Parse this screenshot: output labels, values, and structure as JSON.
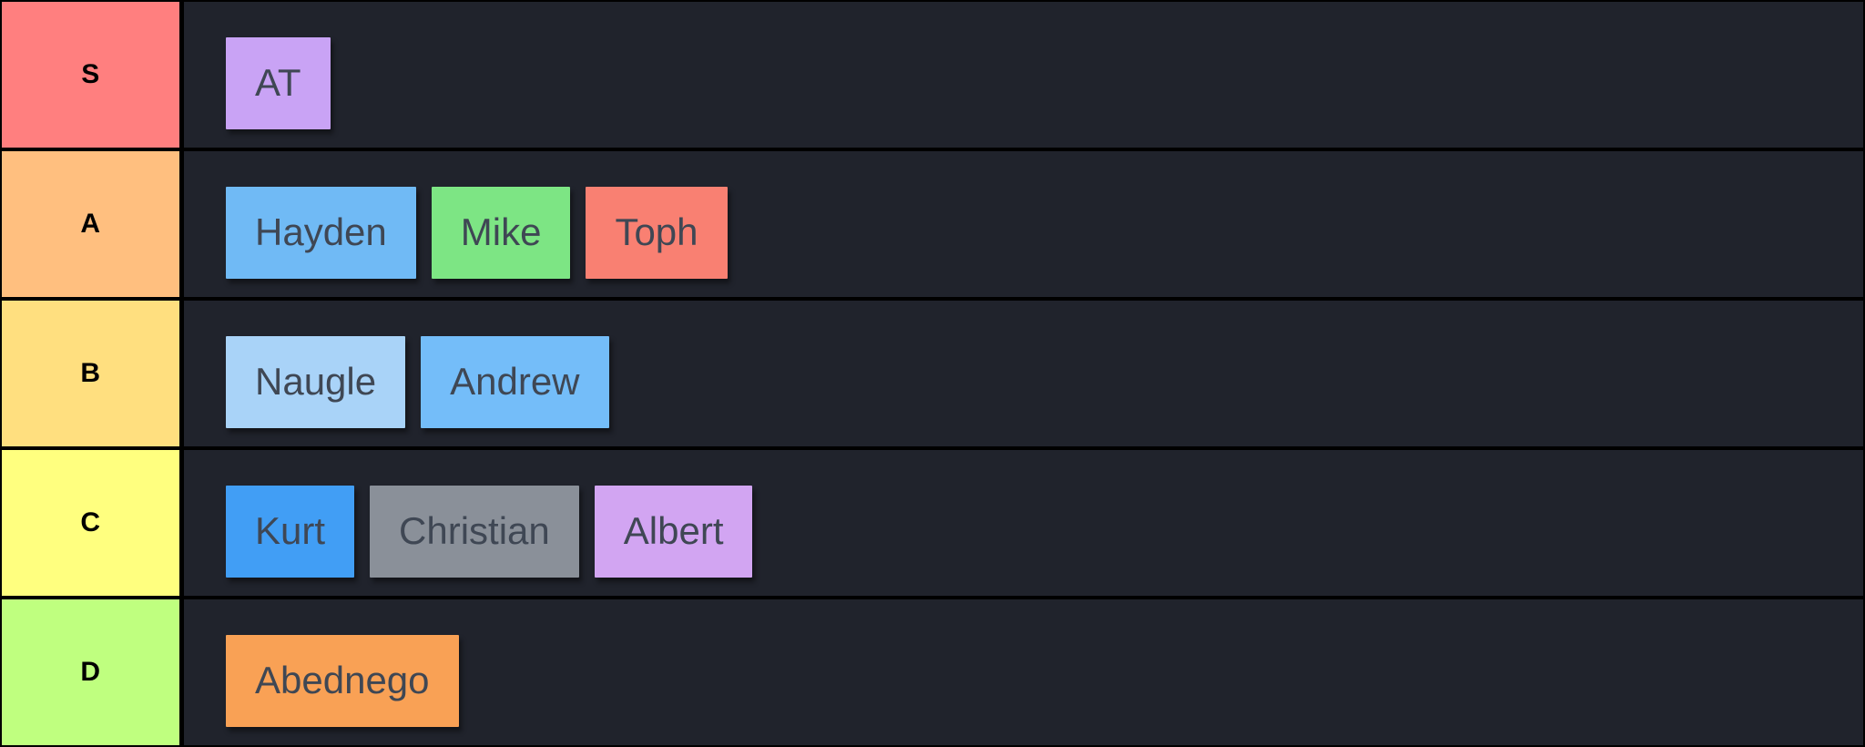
{
  "colors": {
    "board_border": "#000000",
    "row_background": "#20232c",
    "separator": "#000000",
    "tier_label_text": "#000000",
    "chip_text": "#3f4754"
  },
  "tiers": [
    {
      "label": "S",
      "color": "#ff7f7f",
      "items": [
        {
          "name": "AT",
          "color": "#c9a3f5"
        }
      ]
    },
    {
      "label": "A",
      "color": "#ffbf7f",
      "items": [
        {
          "name": "Hayden",
          "color": "#70baf5"
        },
        {
          "name": "Mike",
          "color": "#7de584"
        },
        {
          "name": "Toph",
          "color": "#f98072"
        }
      ]
    },
    {
      "label": "B",
      "color": "#ffdf7f",
      "items": [
        {
          "name": "Naugle",
          "color": "#a9d3f8"
        },
        {
          "name": "Andrew",
          "color": "#74bdf9"
        }
      ]
    },
    {
      "label": "C",
      "color": "#ffff7f",
      "items": [
        {
          "name": "Kurt",
          "color": "#419ef5"
        },
        {
          "name": "Christian",
          "color": "#8a9099"
        },
        {
          "name": "Albert",
          "color": "#d2a5f2"
        }
      ]
    },
    {
      "label": "D",
      "color": "#bfff7f",
      "items": [
        {
          "name": "Abednego",
          "color": "#f9a155"
        }
      ]
    }
  ]
}
